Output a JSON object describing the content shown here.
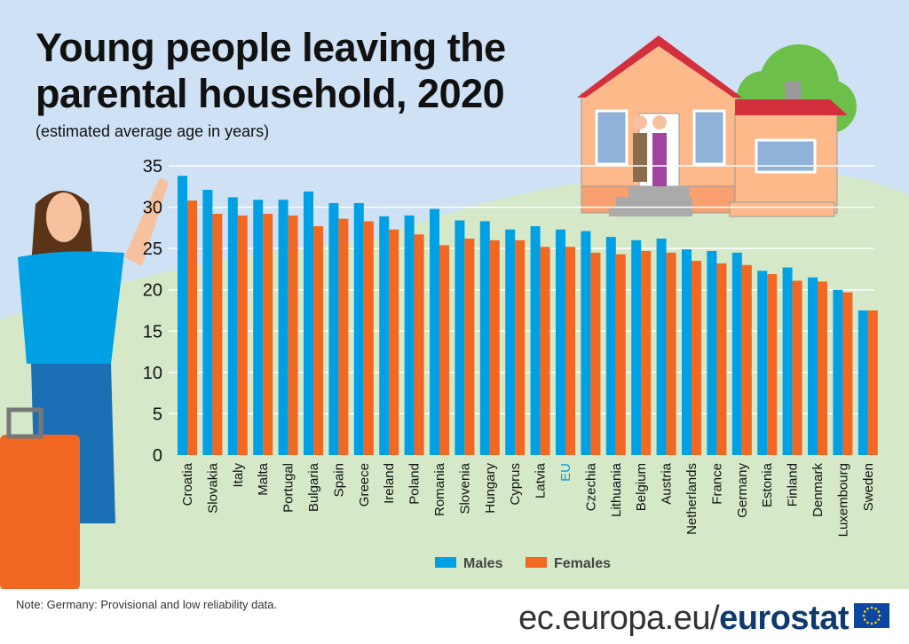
{
  "title_line1": "Young people leaving the",
  "title_line2": "parental household, 2020",
  "subtitle": "(estimated average age in years)",
  "note": "Note: Germany: Provisional and low reliability data.",
  "brand": {
    "domain": "ec.europa.eu/",
    "name": "eurostat"
  },
  "colors": {
    "males": "#00a1e4",
    "females": "#f26722",
    "eu_label": "#00a1e4",
    "sky": "#cfe1f4",
    "hill": "#d5e8c8"
  },
  "chart_data": {
    "type": "bar",
    "title": "Young people leaving the parental household, 2020",
    "ylabel": "",
    "xlabel": "",
    "ylim": [
      0,
      35
    ],
    "yticks": [
      0,
      5,
      10,
      15,
      20,
      25,
      30,
      35
    ],
    "grid": true,
    "legend_position": "bottom",
    "categories": [
      "Croatia",
      "Slovakia",
      "Italy",
      "Malta",
      "Portugal",
      "Bulgaria",
      "Spain",
      "Greece",
      "Ireland",
      "Poland",
      "Romania",
      "Slovenia",
      "Hungary",
      "Cyprus",
      "Latvia",
      "EU",
      "Czechia",
      "Lithuania",
      "Belgium",
      "Austria",
      "Netherlands",
      "France",
      "Germany",
      "Estonia",
      "Finland",
      "Denmark",
      "Luxembourg",
      "Sweden"
    ],
    "series": [
      {
        "name": "Males",
        "values": [
          33.8,
          32.1,
          31.2,
          30.9,
          30.9,
          31.9,
          30.5,
          30.5,
          28.9,
          29.0,
          29.8,
          28.4,
          28.3,
          27.3,
          27.7,
          27.3,
          27.1,
          26.4,
          26.0,
          26.2,
          24.9,
          24.7,
          24.5,
          22.3,
          22.7,
          21.5,
          20.0,
          17.5
        ]
      },
      {
        "name": "Females",
        "values": [
          30.8,
          29.2,
          29.0,
          29.2,
          29.0,
          27.7,
          28.6,
          28.3,
          27.3,
          26.7,
          25.4,
          26.2,
          26.0,
          26.0,
          25.2,
          25.2,
          24.5,
          24.3,
          24.7,
          24.5,
          23.5,
          23.2,
          23.0,
          21.9,
          21.1,
          21.0,
          19.7,
          17.5
        ]
      }
    ]
  }
}
